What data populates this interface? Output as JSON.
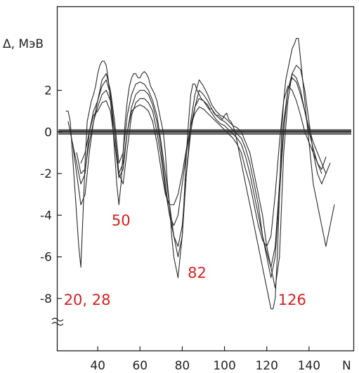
{
  "chart_data": {
    "type": "line",
    "title": "",
    "xlabel": "N",
    "ylabel": "Δ, МэВ",
    "xlim": [
      21,
      161
    ],
    "ylim": [
      -10.5,
      6
    ],
    "x_ticks": [
      40,
      60,
      80,
      100,
      120,
      140
    ],
    "y_ticks": [
      2,
      0,
      -2,
      -4,
      -6,
      -8
    ],
    "x_tick_labels": [
      "40",
      "60",
      "80",
      "100",
      "120",
      "140"
    ],
    "y_tick_labels": [
      "2",
      "0",
      "-2",
      "-4",
      "-6",
      "-8"
    ],
    "grid": false,
    "legend": "none",
    "colors": {
      "curves": "#2a2a2a",
      "zero_band": "#555555",
      "magic_labels": "#d42020",
      "axes": "#222222"
    },
    "annotations": [
      {
        "text": "20, 28",
        "x": 35,
        "y": -8.3
      },
      {
        "text": "50",
        "x": 51,
        "y": -4.5
      },
      {
        "text": "82",
        "x": 87,
        "y": -7
      },
      {
        "text": "126",
        "x": 132,
        "y": -8.3
      }
    ],
    "series": [
      {
        "x": [
          25,
          26,
          27,
          28,
          29,
          30,
          31,
          32,
          33,
          34,
          35,
          36,
          37,
          38,
          39,
          40,
          41,
          42,
          43,
          44,
          45,
          46,
          47,
          48,
          49,
          50,
          51,
          52,
          53,
          54,
          55,
          56,
          57,
          58,
          59,
          60,
          61,
          62,
          63,
          64,
          65,
          66,
          67,
          68,
          69,
          70,
          71,
          72,
          73,
          74,
          75,
          76,
          77,
          78,
          79,
          80,
          81,
          82,
          83,
          84,
          85,
          86,
          87,
          88,
          89,
          90,
          91,
          92,
          93,
          94,
          95,
          96,
          97,
          98,
          99,
          100,
          101,
          102,
          103,
          104,
          105,
          106,
          107,
          108,
          109,
          110,
          111,
          112,
          113,
          114,
          115,
          116,
          117,
          118,
          119,
          120,
          121,
          122,
          123,
          124,
          125,
          126,
          127,
          128,
          129,
          130,
          131,
          132,
          133,
          134,
          135,
          136,
          137,
          138,
          139,
          140,
          141,
          142,
          143,
          144,
          145,
          146,
          147,
          148,
          149,
          150,
          151,
          152
        ],
        "values": [
          1.0,
          1.0,
          0.5,
          -1.0,
          -2.5,
          -4.0,
          -5.5,
          -6.5,
          -4.0,
          -1.5,
          0.5,
          1.0,
          1.5,
          1.8,
          2.2,
          2.8,
          3.2,
          3.4,
          3.4,
          3.2,
          2.5,
          1.5,
          0.5,
          -1.0,
          -2.5,
          -3.5,
          -2.5,
          -1.0,
          0.5,
          1.5,
          2.2,
          2.6,
          2.8,
          2.8,
          2.6,
          2.6,
          2.8,
          2.9,
          2.8,
          2.6,
          2.2,
          2.0,
          1.8,
          1.5,
          1.0,
          0.5,
          0.0,
          -1.0,
          -2.5,
          -3.5,
          -5.0,
          -6.0,
          -6.5,
          -7.0,
          -6.0,
          -5.0,
          -3.0,
          -1.0,
          0.5,
          1.8,
          2.3,
          2.3,
          2.0,
          1.8,
          1.6,
          1.5,
          1.4,
          1.3,
          1.1,
          1.1,
          0.9,
          0.8,
          0.8,
          0.7,
          0.6,
          0.8,
          0.9,
          0.6,
          0.5,
          0.3,
          0.0,
          -0.5,
          -1.0,
          -1.5,
          -2.0,
          -2.5,
          -3.0,
          -3.5,
          -4.0,
          -4.5,
          -5.0,
          -5.5,
          -6.0,
          -6.5,
          -7.0,
          -7.5,
          -8.0,
          -8.5,
          -8.5,
          -8.0,
          -6.0,
          -3.0,
          0.0,
          1.5,
          2.5,
          3.0,
          3.5,
          4.0,
          4.2,
          4.5,
          4.5,
          3.5,
          2.5,
          1.5,
          0.5,
          -0.5,
          -1.5,
          -2.5,
          -3.0,
          -3.5,
          -4.0,
          -4.5,
          -5.0,
          -5.5,
          -5.0,
          -4.5,
          -4.0,
          -3.5
        ]
      },
      {
        "x": [
          26,
          28,
          30,
          32,
          34,
          36,
          38,
          40,
          42,
          44,
          46,
          48,
          50,
          52,
          54,
          56,
          58,
          60,
          62,
          64,
          66,
          68,
          70,
          72,
          74,
          76,
          78,
          80,
          82,
          84,
          86,
          88,
          90,
          92,
          94,
          96,
          98,
          100,
          102,
          104,
          106,
          108,
          110,
          112,
          114,
          116,
          118,
          120,
          122,
          124,
          126,
          128,
          130,
          132,
          134,
          136,
          138,
          140,
          142,
          144,
          146,
          148,
          150
        ],
        "values": [
          0.5,
          -0.5,
          -2.0,
          -3.5,
          -3.0,
          -1.0,
          0.5,
          1.5,
          2.5,
          2.8,
          2.0,
          0.5,
          -1.5,
          -1.0,
          0.8,
          1.8,
          2.3,
          2.4,
          2.3,
          2.0,
          1.5,
          0.8,
          -0.5,
          -2.0,
          -3.5,
          -5.0,
          -6.0,
          -5.0,
          -2.0,
          0.5,
          1.8,
          2.5,
          2.2,
          1.8,
          1.3,
          1.0,
          0.8,
          0.7,
          0.5,
          0.3,
          0.2,
          0.0,
          -0.5,
          -1.0,
          -2.0,
          -3.0,
          -4.0,
          -5.5,
          -6.5,
          -7.5,
          -6.0,
          -1.0,
          1.5,
          2.8,
          3.2,
          3.0,
          2.0,
          0.5,
          -1.0,
          -2.0,
          -2.5,
          -2.0,
          -1.5
        ]
      },
      {
        "x": [
          28,
          30,
          32,
          34,
          36,
          38,
          40,
          42,
          44,
          46,
          48,
          50,
          52,
          54,
          56,
          58,
          60,
          62,
          64,
          66,
          68,
          70,
          72,
          74,
          76,
          78,
          80,
          82,
          84,
          86,
          88,
          90,
          92,
          94,
          96,
          98,
          100,
          102,
          104,
          106,
          108,
          110,
          112,
          114,
          116,
          118,
          120,
          122,
          124,
          126,
          128,
          130,
          132,
          134,
          136,
          138,
          140,
          142,
          144,
          146,
          148
        ],
        "values": [
          -0.5,
          -1.5,
          -2.5,
          -2.0,
          0.0,
          1.0,
          1.5,
          2.2,
          2.5,
          1.8,
          0.0,
          -2.0,
          -1.5,
          0.0,
          1.2,
          1.8,
          2.0,
          2.0,
          1.8,
          1.3,
          0.5,
          -0.8,
          -2.5,
          -4.0,
          -5.0,
          -5.5,
          -4.5,
          -2.0,
          0.0,
          1.2,
          2.0,
          1.8,
          1.5,
          1.1,
          0.8,
          0.6,
          0.5,
          0.3,
          0.1,
          -0.1,
          -0.3,
          -0.8,
          -1.5,
          -2.5,
          -3.5,
          -5.0,
          -6.0,
          -7.0,
          -6.0,
          -3.0,
          0.0,
          2.0,
          2.8,
          2.6,
          2.0,
          1.0,
          0.0,
          -0.8,
          -1.5,
          -1.8,
          -1.2
        ]
      },
      {
        "x": [
          30,
          32,
          34,
          36,
          38,
          40,
          42,
          44,
          46,
          48,
          50,
          52,
          54,
          56,
          58,
          60,
          62,
          64,
          66,
          68,
          70,
          72,
          74,
          76,
          78,
          80,
          82,
          84,
          86,
          88,
          90,
          92,
          94,
          96,
          98,
          100,
          102,
          104,
          106,
          108,
          110,
          112,
          114,
          116,
          118,
          120,
          122,
          124,
          126,
          128,
          130,
          132,
          134,
          136,
          138,
          140,
          142,
          144,
          146,
          148
        ],
        "values": [
          -1.0,
          -2.0,
          -1.8,
          -0.5,
          0.5,
          1.2,
          1.8,
          2.0,
          1.5,
          0.0,
          -2.0,
          -2.5,
          -0.8,
          0.8,
          1.4,
          1.6,
          1.6,
          1.4,
          1.0,
          0.0,
          -1.2,
          -2.8,
          -4.0,
          -4.5,
          -4.0,
          -2.5,
          -1.0,
          0.3,
          1.2,
          1.6,
          1.5,
          1.2,
          0.9,
          0.6,
          0.4,
          0.3,
          0.1,
          -0.1,
          -0.3,
          -0.6,
          -1.2,
          -2.0,
          -3.0,
          -4.0,
          -5.0,
          -5.8,
          -6.5,
          -5.5,
          -2.5,
          0.5,
          2.0,
          2.6,
          2.4,
          1.8,
          1.0,
          0.2,
          -0.5,
          -1.0,
          -1.5,
          -2.0
        ]
      },
      {
        "x": [
          32,
          34,
          36,
          38,
          40,
          42,
          44,
          46,
          48,
          50,
          52,
          54,
          56,
          58,
          60,
          62,
          64,
          66,
          68,
          70,
          72,
          74,
          76,
          78,
          80,
          82,
          84,
          86,
          88,
          90,
          92,
          94,
          96,
          98,
          100,
          102,
          104,
          106,
          108,
          110,
          112,
          114,
          116,
          118,
          120,
          122,
          124,
          126,
          128,
          130,
          132,
          134,
          136,
          138,
          140,
          142,
          144,
          146
        ],
        "values": [
          -1.5,
          -1.0,
          0.0,
          0.8,
          1.0,
          1.4,
          1.5,
          1.0,
          -0.5,
          -2.2,
          -1.8,
          0.0,
          1.0,
          1.2,
          1.3,
          1.2,
          1.0,
          0.5,
          -0.5,
          -1.8,
          -3.0,
          -3.5,
          -3.5,
          -3.0,
          -2.0,
          -0.8,
          0.3,
          0.9,
          1.2,
          1.1,
          0.9,
          0.7,
          0.5,
          0.3,
          0.1,
          -0.1,
          -0.3,
          -0.6,
          -1.0,
          -1.8,
          -2.5,
          -3.5,
          -4.5,
          -5.2,
          -5.5,
          -5.0,
          -3.0,
          -0.5,
          1.5,
          2.2,
          2.0,
          1.5,
          0.8,
          0.0,
          -0.5,
          -1.0,
          -1.5,
          -2.0
        ]
      }
    ]
  }
}
